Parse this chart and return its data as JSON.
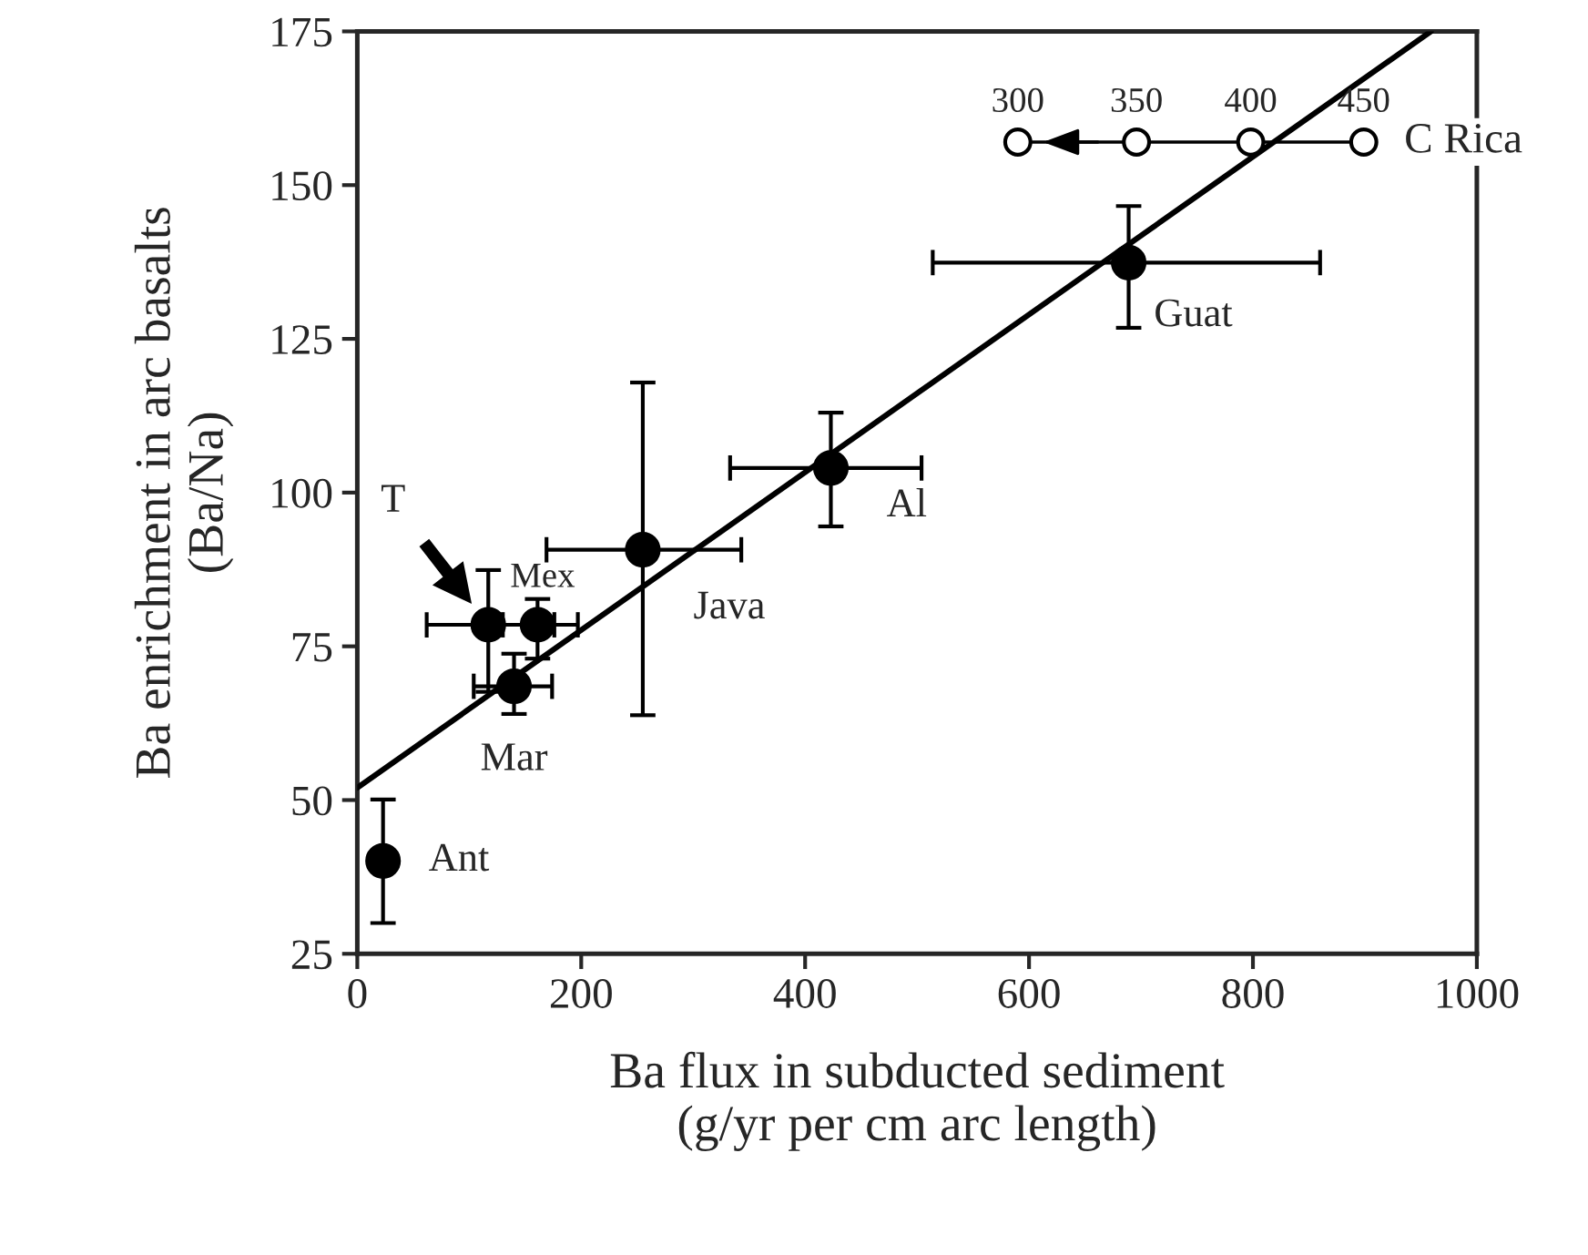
{
  "chart_data": {
    "type": "scatter",
    "xlabel": "Ba flux in subducted sediment\n(g/yr per cm arc length)",
    "ylabel": "Ba enrichment in arc basalts\n(Ba/Na)",
    "xlim": [
      0,
      1000
    ],
    "xticks": [
      0,
      200,
      400,
      600,
      800,
      1000
    ],
    "ylim": [
      25,
      175
    ],
    "yticks": [
      25,
      50,
      75,
      100,
      125,
      150,
      175
    ],
    "grid": false,
    "legend": false,
    "series": [
      {
        "type": "line",
        "color": "#000000",
        "marker": "none",
        "line_style": "solid",
        "x": [
          0,
          959
        ],
        "values": [
          52,
          175
        ]
      },
      {
        "color": "#000000",
        "marker": "circle",
        "x": [
          23,
          140,
          117,
          161,
          255,
          423,
          689
        ],
        "values": [
          40.1,
          68.5,
          78.5,
          78.5,
          90.7,
          104,
          137.4
        ],
        "errors": [
          [
            30,
            50.1
          ],
          [
            64,
            73.8
          ],
          [
            67.6,
            87.4
          ],
          [
            73,
            82.7
          ],
          [
            63.8,
            117.9
          ],
          [
            94.5,
            113
          ],
          [
            126.8,
            146.6
          ]
        ],
        "xerrors": [
          null,
          [
            104,
            174
          ],
          [
            62,
            176
          ],
          [
            130,
            197
          ],
          [
            169,
            343
          ],
          [
            333,
            504
          ],
          [
            514,
            860
          ]
        ]
      },
      {
        "type": "line",
        "name": "C Rica",
        "color": "#000000",
        "marker": "circle",
        "x": [
          590,
          696,
          798,
          899
        ],
        "values": [
          157,
          157,
          157,
          157
        ]
      }
    ],
    "annotations": [
      {
        "text": "Ant",
        "x": 23,
        "y": 40.1
      },
      {
        "text": "Mar",
        "x": 140,
        "y": 68.5
      },
      "T",
      {
        "text": "Mex",
        "x": 161,
        "y": 78.5
      },
      {
        "text": "Java",
        "x": 255,
        "y": 90.7
      },
      {
        "text": "Al",
        "x": 423,
        "y": 104
      },
      {
        "text": "Guat",
        "x": 689,
        "y": 137.4
      },
      {
        "text": "300",
        "x": 590,
        "y": 157
      },
      {
        "text": "350",
        "x": 696,
        "y": 157
      },
      {
        "text": "400",
        "x": 798,
        "y": 157
      },
      {
        "text": "450",
        "x": 899,
        "y": 157
      }
    ]
  }
}
